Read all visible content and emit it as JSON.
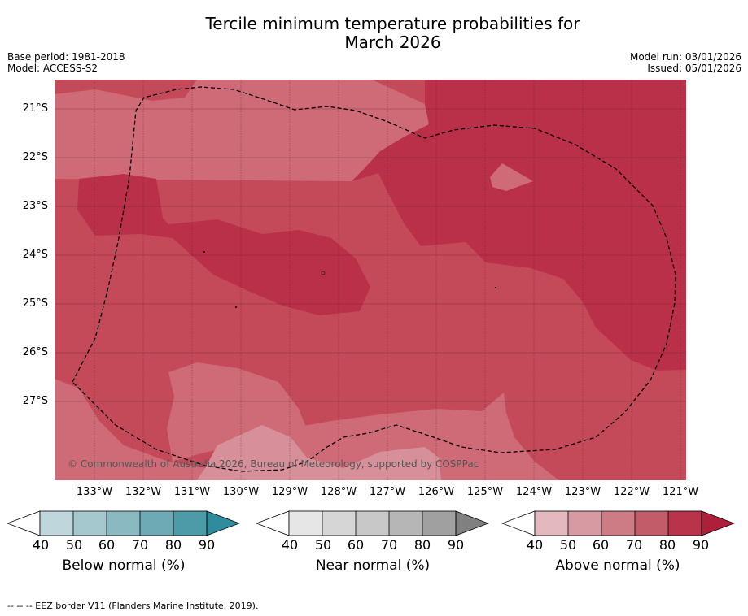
{
  "title_line1": "Tercile minimum temperature probabilities for",
  "title_line2": "March 2026",
  "meta": {
    "base_period": "Base period: 1981-2018",
    "model": "Model: ACCESS-S2",
    "model_run": "Model run: 03/01/2026",
    "issued": "Issued: 05/01/2026"
  },
  "copyright": "© Commonwealth of Australia 2026, Bureau of Meteorology, supported by COSPPac",
  "lat_labels": [
    "21°S",
    "22°S",
    "23°S",
    "24°S",
    "25°S",
    "26°S",
    "27°S"
  ],
  "lon_labels": [
    "133°W",
    "132°W",
    "131°W",
    "130°W",
    "129°W",
    "128°W",
    "127°W",
    "126°W",
    "125°W",
    "124°W",
    "123°W",
    "122°W",
    "121°W"
  ],
  "legends": {
    "below": {
      "title": "Below normal (%)",
      "ticks": [
        "40",
        "50",
        "60",
        "70",
        "80",
        "90"
      ],
      "colors": [
        "#bfd7dc",
        "#a5c8ce",
        "#8bb9c2",
        "#6eaab5",
        "#4d9ba8",
        "#2e8c9c"
      ]
    },
    "near": {
      "title": "Near normal (%)",
      "ticks": [
        "40",
        "50",
        "60",
        "70",
        "80",
        "90"
      ],
      "colors": [
        "#e6e6e6",
        "#d6d6d6",
        "#c8c8c8",
        "#b6b6b6",
        "#a0a0a0",
        "#808080"
      ]
    },
    "above": {
      "title": "Above normal (%)",
      "ticks": [
        "40",
        "50",
        "60",
        "70",
        "80",
        "90"
      ],
      "colors": [
        "#e3b9bf",
        "#d89aa2",
        "#cd7b85",
        "#c25c68",
        "#b9344a",
        "#ae1f3a"
      ]
    }
  },
  "footnote": "--  --  -- EEZ border V11 (Flanders Marine Institute, 2019).",
  "map_colors": {
    "base": "#c44a5a",
    "lighter": "#ce6b77",
    "lightest": "#d7909a",
    "darker": "#ba3049",
    "grid": "#4a1a20"
  }
}
